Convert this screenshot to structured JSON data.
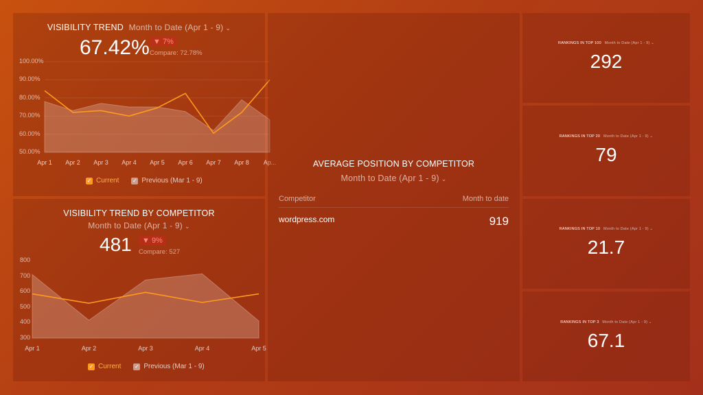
{
  "visibility_trend": {
    "title": "VISIBILITY TREND",
    "range": "Month to Date (Apr 1 - 9)",
    "value": "67.42%",
    "change": "▼ 7%",
    "compare": "Compare: 72.78%",
    "legend_current": "Current",
    "legend_previous": "Previous (Mar 1 - 9)"
  },
  "competitor_trend": {
    "title": "VISIBILITY TREND BY COMPETITOR",
    "range": "Month to Date (Apr 1 - 9)",
    "value": "481",
    "change": "▼ 9%",
    "compare": "Compare: 527",
    "legend_current": "Current",
    "legend_previous": "Previous (Mar 1 - 9)"
  },
  "average_position": {
    "title": "AVERAGE POSITION BY COMPETITOR",
    "range": "Month to Date (Apr 1 - 9)",
    "col_competitor": "Competitor",
    "col_value": "Month to date",
    "rows": [
      {
        "name": "wordpress.com",
        "value": "919"
      }
    ]
  },
  "rankings": [
    {
      "title": "RANKINGS IN TOP 100",
      "range": "Month to Date (Apr 1 - 9)",
      "value": "292"
    },
    {
      "title": "RANKINGS IN TOP 20",
      "range": "Month to Date (Apr 1 - 9)",
      "value": "79"
    },
    {
      "title": "RANKINGS IN TOP 10",
      "range": "Month to Date (Apr 1 - 9)",
      "value": "21.7"
    },
    {
      "title": "RANKINGS IN TOP 3",
      "range": "Month to Date (Apr 1 - 9)",
      "value": "67.1"
    }
  ],
  "chart_data": [
    {
      "type": "line",
      "x": [
        "Apr 1",
        "Apr 2",
        "Apr 3",
        "Apr 4",
        "Apr 5",
        "Apr 6",
        "Apr 7",
        "Apr 8",
        "Ap..."
      ],
      "ytick_labels": [
        "100.00%",
        "90.00%",
        "80.00%",
        "70.00%",
        "60.00%",
        "50.00%"
      ],
      "ylim": [
        50,
        100
      ],
      "series": [
        {
          "name": "Current",
          "values": [
            84,
            72,
            73,
            70,
            74.5,
            82.5,
            60.5,
            72,
            90
          ]
        },
        {
          "name": "Previous (Mar 1 - 9)",
          "values": [
            78,
            73,
            77,
            75,
            75,
            72.5,
            62,
            79,
            68
          ],
          "style": "area"
        }
      ],
      "colors": {
        "current": "#ff9a1f",
        "previous": "#c9a095"
      },
      "grid": true
    },
    {
      "type": "line",
      "x": [
        "Apr 1",
        "Apr 2",
        "Apr 3",
        "Apr 4",
        "Apr 5"
      ],
      "ytick_labels": [
        "800",
        "700",
        "600",
        "500",
        "400",
        "300"
      ],
      "ylim": [
        300,
        800
      ],
      "series": [
        {
          "name": "Current",
          "values": [
            585,
            525,
            595,
            530,
            585
          ]
        },
        {
          "name": "Previous (Mar 1 - 9)",
          "values": [
            710,
            415,
            675,
            715,
            410
          ],
          "style": "area"
        }
      ],
      "colors": {
        "current": "#ff9a1f",
        "previous": "#c9a095"
      },
      "grid": false
    }
  ]
}
